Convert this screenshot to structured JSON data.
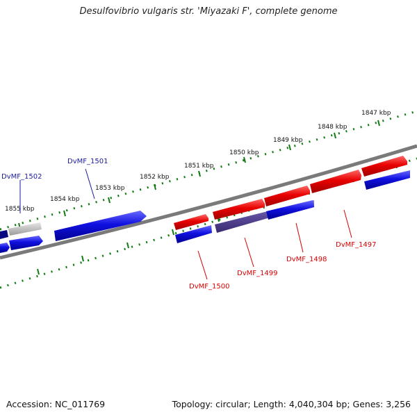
{
  "title": "Desulfovibrio vulgaris str. 'Miyazaki F', complete genome",
  "footer": {
    "accession": "Accession: NC_011769",
    "summary": "Topology: circular; Length: 4,040,304 bp; Genes: 3,256"
  },
  "ruler": {
    "ticks": [
      "1847 kbp",
      "1848 kbp",
      "1849 kbp",
      "1850 kbp",
      "1851 kbp",
      "1852 kbp",
      "1853 kbp",
      "1854 kbp",
      "1855 kbp"
    ]
  },
  "genes": [
    {
      "name": "DvMF_1497",
      "strand": "forward",
      "color": "#e80000"
    },
    {
      "name": "DvMF_1498",
      "strand": "forward",
      "color": "#e80000"
    },
    {
      "name": "DvMF_1499",
      "strand": "forward",
      "color": "#e80000"
    },
    {
      "name": "DvMF_1500",
      "strand": "forward",
      "color": "#e80000"
    },
    {
      "name": "DvMF_1501",
      "strand": "reverse",
      "color": "#1010e0"
    },
    {
      "name": "DvMF_1502",
      "strand": "reverse",
      "color": "#1010e0"
    }
  ],
  "colors": {
    "backbone": "#7a7a7a",
    "tick": "#117a11",
    "forward_gene": "#e80000",
    "reverse_gene": "#1010e0",
    "overlap_gene": "#5a4a9a",
    "faded_gene": "#bdbdbd"
  }
}
